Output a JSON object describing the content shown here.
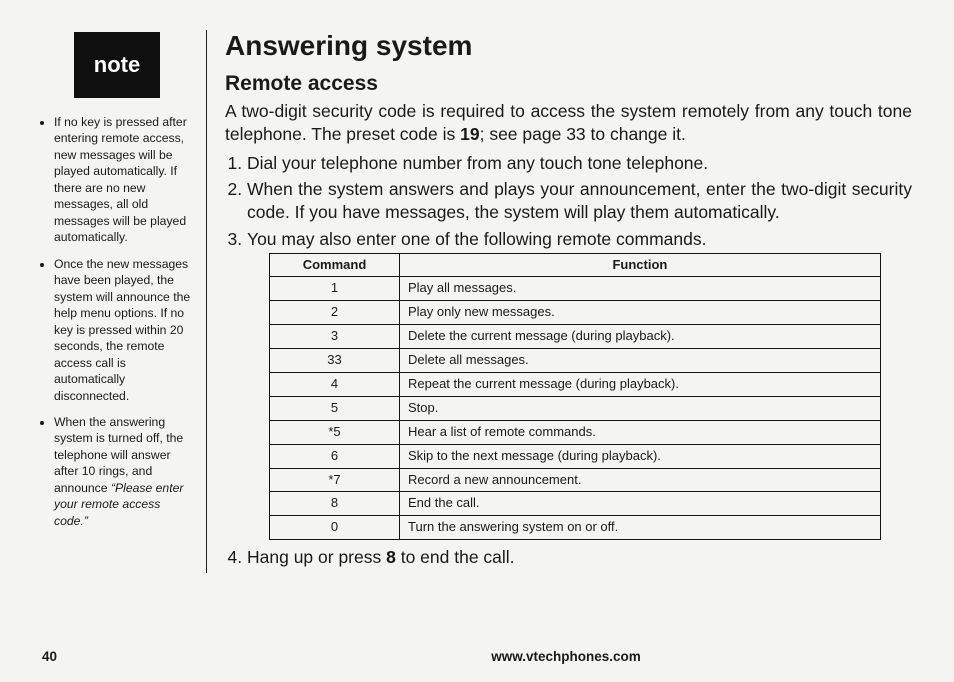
{
  "sidebar": {
    "badge_label": "note",
    "notes": [
      "If no key is pressed after entering remote access, new messages will be played automatically. If there are no new messages, all old messages will be played automatically.",
      "Once the new messages have been played, the system will announce the help menu options. If no key is pressed within 20 seconds, the remote access call is automatically disconnected.",
      "When the answering system is turned off, the telephone will answer after 10 rings, and announce "
    ],
    "note3_emph": "“Please enter your remote access code.”"
  },
  "main": {
    "h1": "Answering system",
    "h2": "Remote access",
    "intro_pre": "A two-digit security code is required to access the system remotely from any touch tone telephone. The preset code is ",
    "intro_code": "19",
    "intro_post": "; see page 33 to change it.",
    "steps": {
      "s1": "Dial your telephone number from any touch tone telephone.",
      "s2": "When the system answers and plays your announcement, enter the two-digit security code. If you have messages, the system will play them automatically.",
      "s3": "You may also enter one of the following remote commands.",
      "s4_pre": "Hang up or press ",
      "s4_key": "8",
      "s4_post": " to end the call."
    },
    "table": {
      "head_cmd": "Command",
      "head_fn": "Function",
      "rows": [
        {
          "cmd": "1",
          "fn": "Play all messages."
        },
        {
          "cmd": "2",
          "fn": "Play only new messages."
        },
        {
          "cmd": "3",
          "fn": "Delete the current message (during playback)."
        },
        {
          "cmd": "33",
          "fn": "Delete all messages."
        },
        {
          "cmd": "4",
          "fn": "Repeat the current message (during playback)."
        },
        {
          "cmd": "5",
          "fn": "Stop."
        },
        {
          "cmd": "*5",
          "fn": "Hear a list of remote commands."
        },
        {
          "cmd": "6",
          "fn": "Skip to the next message (during playback)."
        },
        {
          "cmd": "*7",
          "fn": "Record a new announcement."
        },
        {
          "cmd": "8",
          "fn": "End the call."
        },
        {
          "cmd": "0",
          "fn": "Turn the answering system on or off."
        }
      ]
    }
  },
  "footer": {
    "page_number": "40",
    "url": "www.vtechphones.com"
  }
}
